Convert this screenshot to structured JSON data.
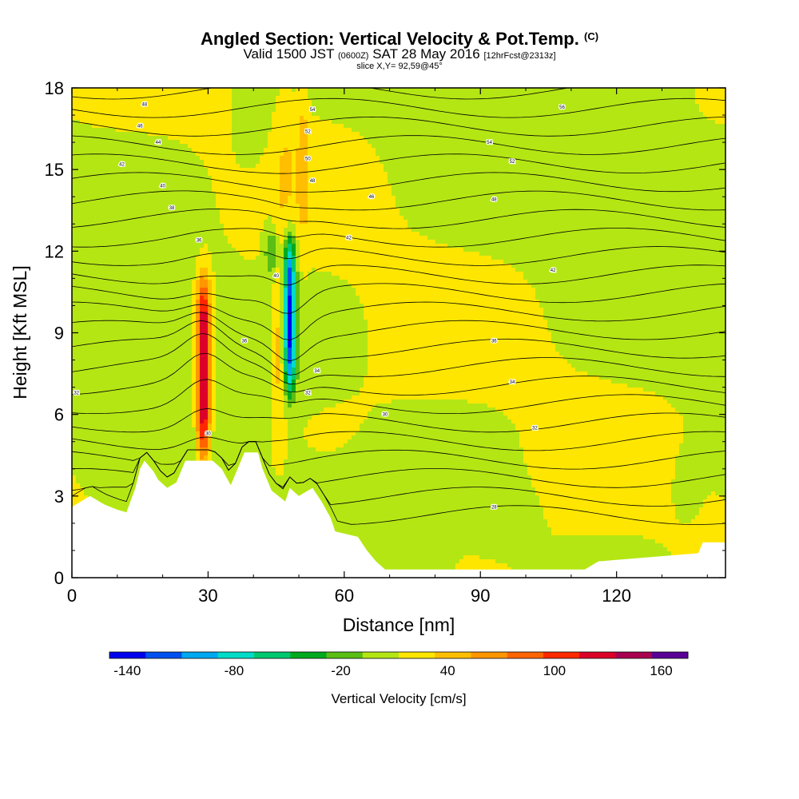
{
  "header": {
    "title_main": "Angled Section: Vertical Velocity & Pot.Temp.",
    "title_unit": "(C)",
    "valid_a": "Valid 1500 JST",
    "valid_b": "(0600Z)",
    "valid_c": "SAT 28 May 2016",
    "valid_d": "[12hrFcst@2313z]",
    "slice": "slice X,Y= 92,59@45°"
  },
  "chart_data": {
    "type": "heatmap",
    "xlabel": "Distance [nm]",
    "ylabel": "Height [Kft MSL]",
    "xlim": [
      0,
      144
    ],
    "ylim": [
      0,
      18
    ],
    "x_ticks": [
      0,
      30,
      60,
      90,
      120
    ],
    "y_ticks": [
      0,
      3,
      6,
      9,
      12,
      15,
      18
    ],
    "colorbar": {
      "label": "Vertical Velocity [cm/s]",
      "range": [
        -150,
        175
      ],
      "tick_values": [
        -140,
        -80,
        -20,
        40,
        100,
        160
      ],
      "tick_labels": [
        "-140",
        "-80",
        "-20",
        "40",
        "100",
        "160"
      ],
      "colors": [
        "#0000ee",
        "#0050f0",
        "#00a8f0",
        "#00dcc8",
        "#00c870",
        "#00aa1e",
        "#5abe14",
        "#b4e614",
        "#ffe600",
        "#ffbe00",
        "#ff9600",
        "#ff6400",
        "#ff2800",
        "#dc0028",
        "#aa0050",
        "#5a0096"
      ]
    },
    "terrain_kft": [
      {
        "x": 0,
        "z": 2.6
      },
      {
        "x": 4,
        "z": 3.0
      },
      {
        "x": 7,
        "z": 2.7
      },
      {
        "x": 10,
        "z": 2.5
      },
      {
        "x": 12,
        "z": 2.4
      },
      {
        "x": 14,
        "z": 3.3
      },
      {
        "x": 15,
        "z": 4.0
      },
      {
        "x": 16,
        "z": 4.3
      },
      {
        "x": 18,
        "z": 3.9
      },
      {
        "x": 19,
        "z": 3.6
      },
      {
        "x": 21,
        "z": 3.3
      },
      {
        "x": 23,
        "z": 3.5
      },
      {
        "x": 25,
        "z": 4.3
      },
      {
        "x": 28,
        "z": 4.3
      },
      {
        "x": 31,
        "z": 4.3
      },
      {
        "x": 33,
        "z": 4.0
      },
      {
        "x": 35,
        "z": 3.4
      },
      {
        "x": 36,
        "z": 3.8
      },
      {
        "x": 38,
        "z": 4.6
      },
      {
        "x": 41,
        "z": 4.6
      },
      {
        "x": 42,
        "z": 4.0
      },
      {
        "x": 44,
        "z": 3.2
      },
      {
        "x": 47,
        "z": 2.8
      },
      {
        "x": 48,
        "z": 3.3
      },
      {
        "x": 50,
        "z": 3.0
      },
      {
        "x": 53,
        "z": 3.3
      },
      {
        "x": 55,
        "z": 2.8
      },
      {
        "x": 57,
        "z": 2.2
      },
      {
        "x": 58,
        "z": 1.7
      },
      {
        "x": 63,
        "z": 1.5
      },
      {
        "x": 65,
        "z": 1.0
      },
      {
        "x": 67,
        "z": 0.6
      },
      {
        "x": 69,
        "z": 0.3
      },
      {
        "x": 113,
        "z": 0.3
      },
      {
        "x": 116,
        "z": 0.6
      },
      {
        "x": 138,
        "z": 0.9
      },
      {
        "x": 139,
        "z": 1.3
      },
      {
        "x": 144,
        "z": 1.3
      }
    ],
    "features": [
      {
        "name": "updraft",
        "x": 29,
        "z_base": 4.3,
        "z_top": 11.0,
        "max_cm_s": 150
      },
      {
        "name": "downdraft",
        "x": 48,
        "z_base": 6.8,
        "z_top": 12.5,
        "min_cm_s": -130
      }
    ],
    "contour_labels": [
      {
        "x": 16,
        "z": 17.4,
        "text": "48"
      },
      {
        "x": 15,
        "z": 16.6,
        "text": "46"
      },
      {
        "x": 19,
        "z": 16.0,
        "text": "44"
      },
      {
        "x": 11,
        "z": 15.2,
        "text": "42"
      },
      {
        "x": 20,
        "z": 14.4,
        "text": "40"
      },
      {
        "x": 22,
        "z": 13.6,
        "text": "38"
      },
      {
        "x": 28,
        "z": 12.4,
        "text": "36"
      },
      {
        "x": 53,
        "z": 17.2,
        "text": "54"
      },
      {
        "x": 52,
        "z": 16.4,
        "text": "52"
      },
      {
        "x": 52,
        "z": 15.4,
        "text": "50"
      },
      {
        "x": 53,
        "z": 14.6,
        "text": "48"
      },
      {
        "x": 66,
        "z": 14.0,
        "text": "46"
      },
      {
        "x": 61,
        "z": 12.5,
        "text": "42"
      },
      {
        "x": 45,
        "z": 11.1,
        "text": "40"
      },
      {
        "x": 38,
        "z": 8.7,
        "text": "36"
      },
      {
        "x": 54,
        "z": 7.6,
        "text": "34"
      },
      {
        "x": 52,
        "z": 6.8,
        "text": "32"
      },
      {
        "x": 30,
        "z": 5.3,
        "text": "30"
      },
      {
        "x": 69,
        "z": 6.0,
        "text": "30"
      },
      {
        "x": 92,
        "z": 16.0,
        "text": "54"
      },
      {
        "x": 97,
        "z": 15.3,
        "text": "52"
      },
      {
        "x": 93,
        "z": 13.9,
        "text": "48"
      },
      {
        "x": 108,
        "z": 17.3,
        "text": "56"
      },
      {
        "x": 106,
        "z": 11.3,
        "text": "42"
      },
      {
        "x": 93,
        "z": 8.7,
        "text": "36"
      },
      {
        "x": 97,
        "z": 7.2,
        "text": "34"
      },
      {
        "x": 102,
        "z": 5.5,
        "text": "32"
      },
      {
        "x": 93,
        "z": 2.6,
        "text": "28"
      },
      {
        "x": 1,
        "z": 6.8,
        "text": "32"
      }
    ]
  }
}
